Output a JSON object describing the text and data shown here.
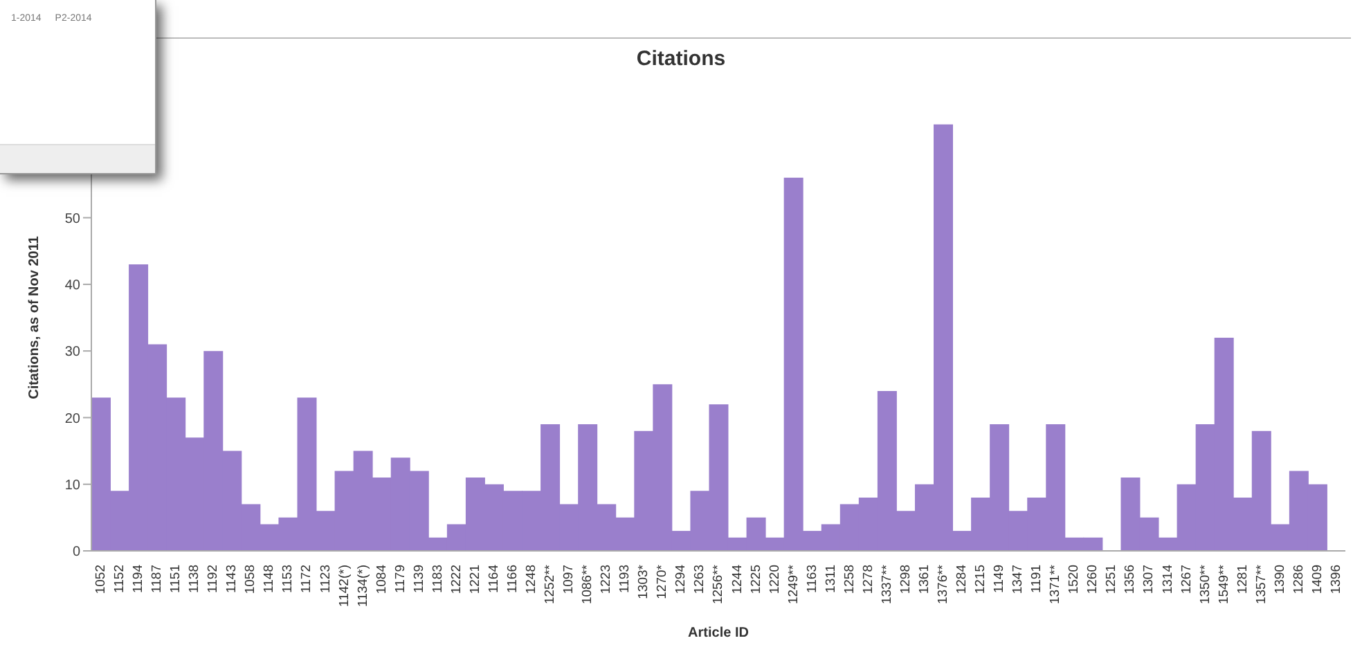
{
  "chart_data": {
    "type": "bar",
    "title": "Citations",
    "xlabel": "Article ID",
    "ylabel": "Citations, as of Nov 2011",
    "categories": [
      "1052",
      "1152",
      "1194",
      "1187",
      "1151",
      "1138",
      "1192",
      "1143",
      "1058",
      "1148",
      "1153",
      "1172",
      "1123",
      "1142(*)",
      "1134(*)",
      "1084",
      "1179",
      "1139",
      "1183",
      "1222",
      "1221",
      "1164",
      "1166",
      "1248",
      "1252**",
      "1097",
      "1086**",
      "1223",
      "1193",
      "1303*",
      "1270*",
      "1294",
      "1263",
      "1256**",
      "1244",
      "1225",
      "1220",
      "1249**",
      "1163",
      "1311",
      "1258",
      "1278",
      "1337**",
      "1298",
      "1361",
      "1376**",
      "1284",
      "1215",
      "1149",
      "1347",
      "1191",
      "1371**",
      "1520",
      "1260",
      "1251",
      "1356",
      "1307",
      "1314",
      "1267",
      "1350**",
      "1549**",
      "1281",
      "1357**",
      "1390",
      "1286",
      "1409",
      "1396"
    ],
    "values": [
      23,
      9,
      43,
      31,
      23,
      17,
      30,
      15,
      7,
      4,
      5,
      23,
      6,
      12,
      15,
      11,
      14,
      12,
      2,
      4,
      11,
      10,
      9,
      9,
      19,
      7,
      19,
      7,
      5,
      18,
      25,
      3,
      9,
      22,
      2,
      5,
      2,
      56,
      3,
      4,
      7,
      8,
      24,
      6,
      10,
      64,
      3,
      8,
      19,
      6,
      8,
      19,
      2,
      2,
      0,
      11,
      5,
      2,
      10,
      19,
      32,
      8,
      18,
      4,
      12,
      10,
      0
    ],
    "color": "#9a7fcc",
    "ylim": [
      0,
      70
    ],
    "yticks": [
      0,
      10,
      20,
      30,
      40,
      50
    ],
    "grid": false,
    "legend": false,
    "annotations": [
      "1-2014",
      "P2-2014"
    ]
  }
}
